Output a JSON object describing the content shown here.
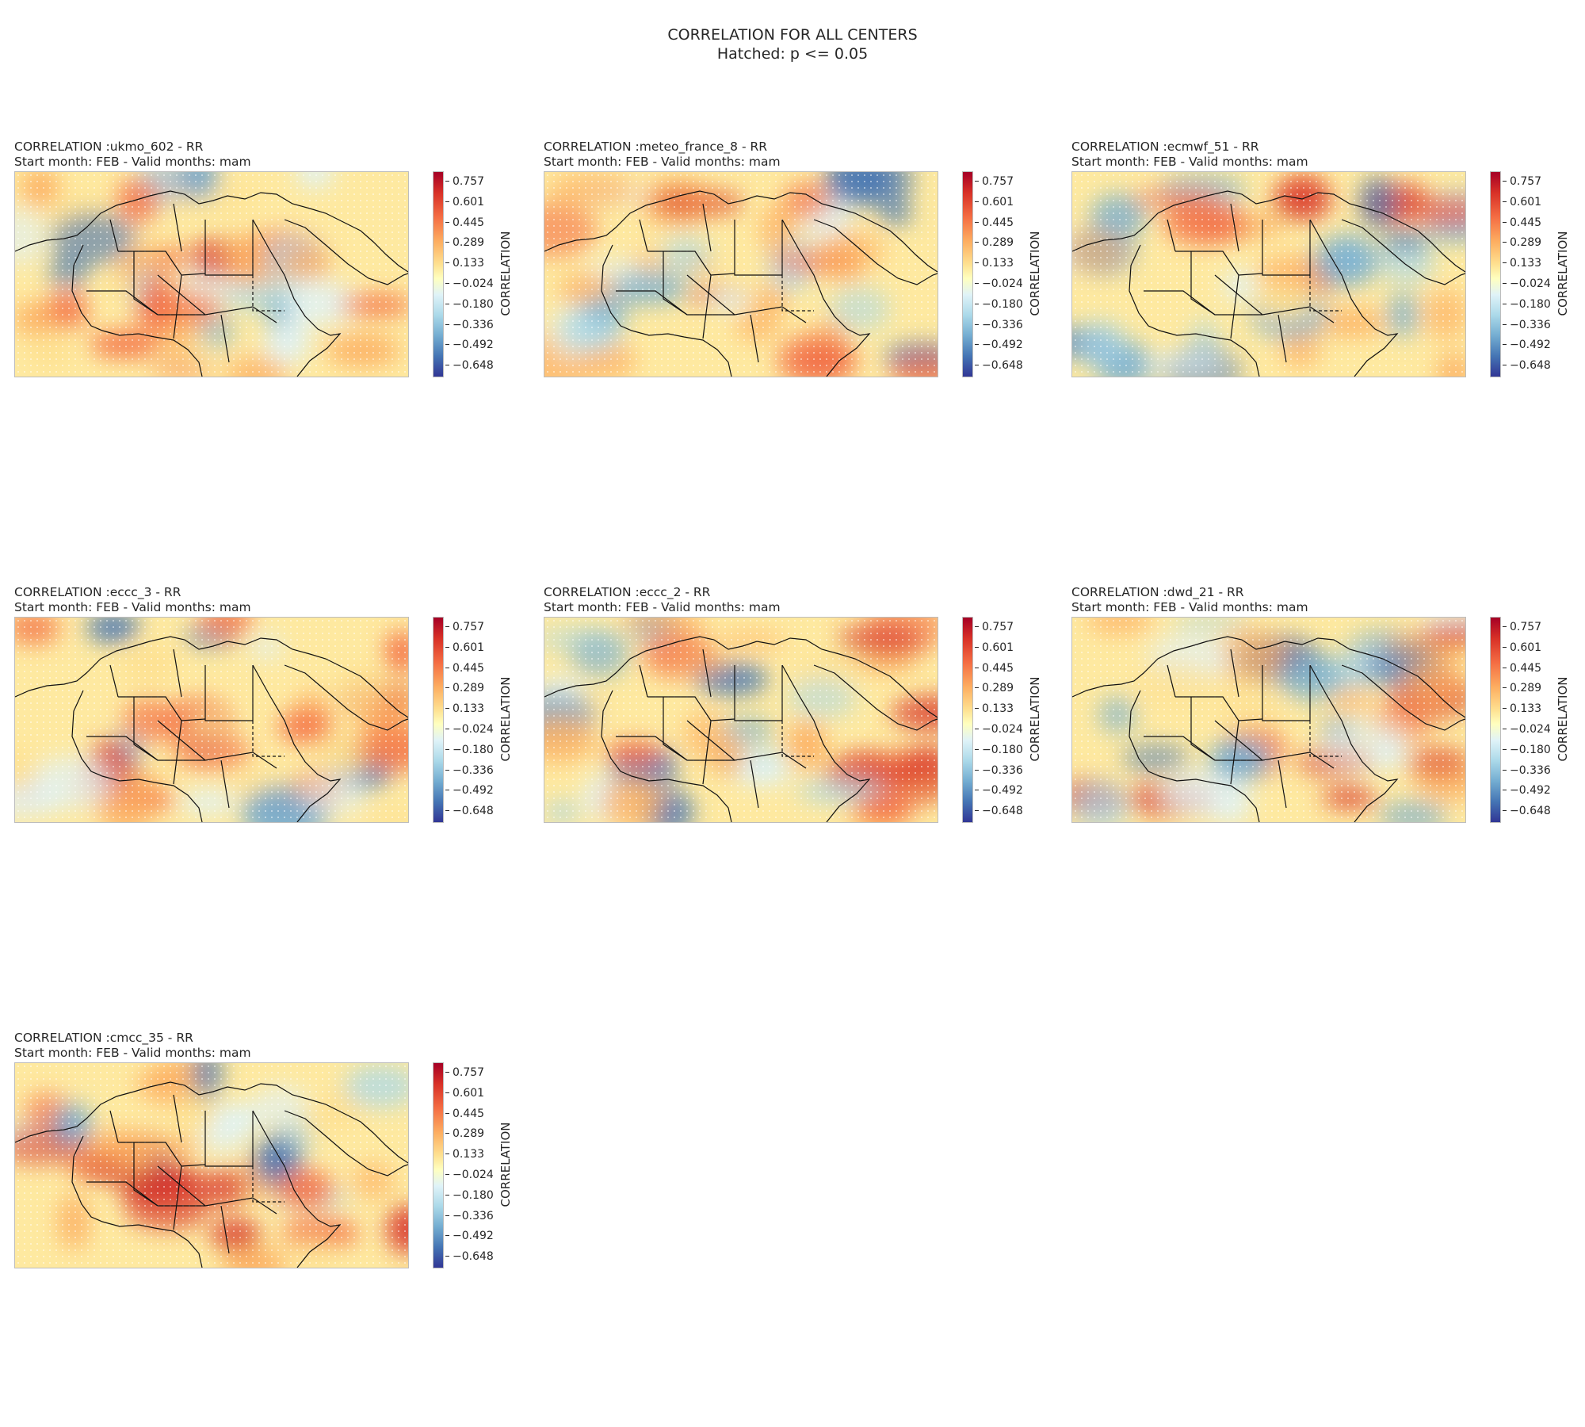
{
  "figure": {
    "title": "CORRELATION FOR ALL CENTERS",
    "subtitle": "Hatched: p <= 0.05"
  },
  "colorbar": {
    "label": "CORRELATION",
    "ticks": [
      "0.757",
      "0.601",
      "0.445",
      "0.289",
      "0.133",
      "−0.024",
      "−0.180",
      "−0.336",
      "−0.492",
      "−0.648"
    ],
    "vmin": -0.726,
    "vmax": 0.835,
    "colors": [
      "#313695",
      "#4575b4",
      "#74add1",
      "#abd9e9",
      "#e0f3f8",
      "#ffffbf",
      "#fee090",
      "#fdae61",
      "#f46d43",
      "#d73027",
      "#a50026"
    ]
  },
  "panels": [
    {
      "title": "CORRELATION :ukmo_602 - RR",
      "subtitle": "Start month: FEB - Valid months: mam"
    },
    {
      "title": "CORRELATION :meteo_france_8 - RR",
      "subtitle": "Start month: FEB - Valid months: mam"
    },
    {
      "title": "CORRELATION :ecmwf_51 - RR",
      "subtitle": "Start month: FEB - Valid months: mam"
    },
    {
      "title": "CORRELATION :eccc_3 - RR",
      "subtitle": "Start month: FEB - Valid months: mam"
    },
    {
      "title": "CORRELATION :eccc_2 - RR",
      "subtitle": "Start month: FEB - Valid months: mam"
    },
    {
      "title": "CORRELATION :dwd_21 - RR",
      "subtitle": "Start month: FEB - Valid months: mam"
    },
    {
      "title": "CORRELATION :cmcc_35 - RR",
      "subtitle": "Start month: FEB - Valid months: mam"
    }
  ]
}
